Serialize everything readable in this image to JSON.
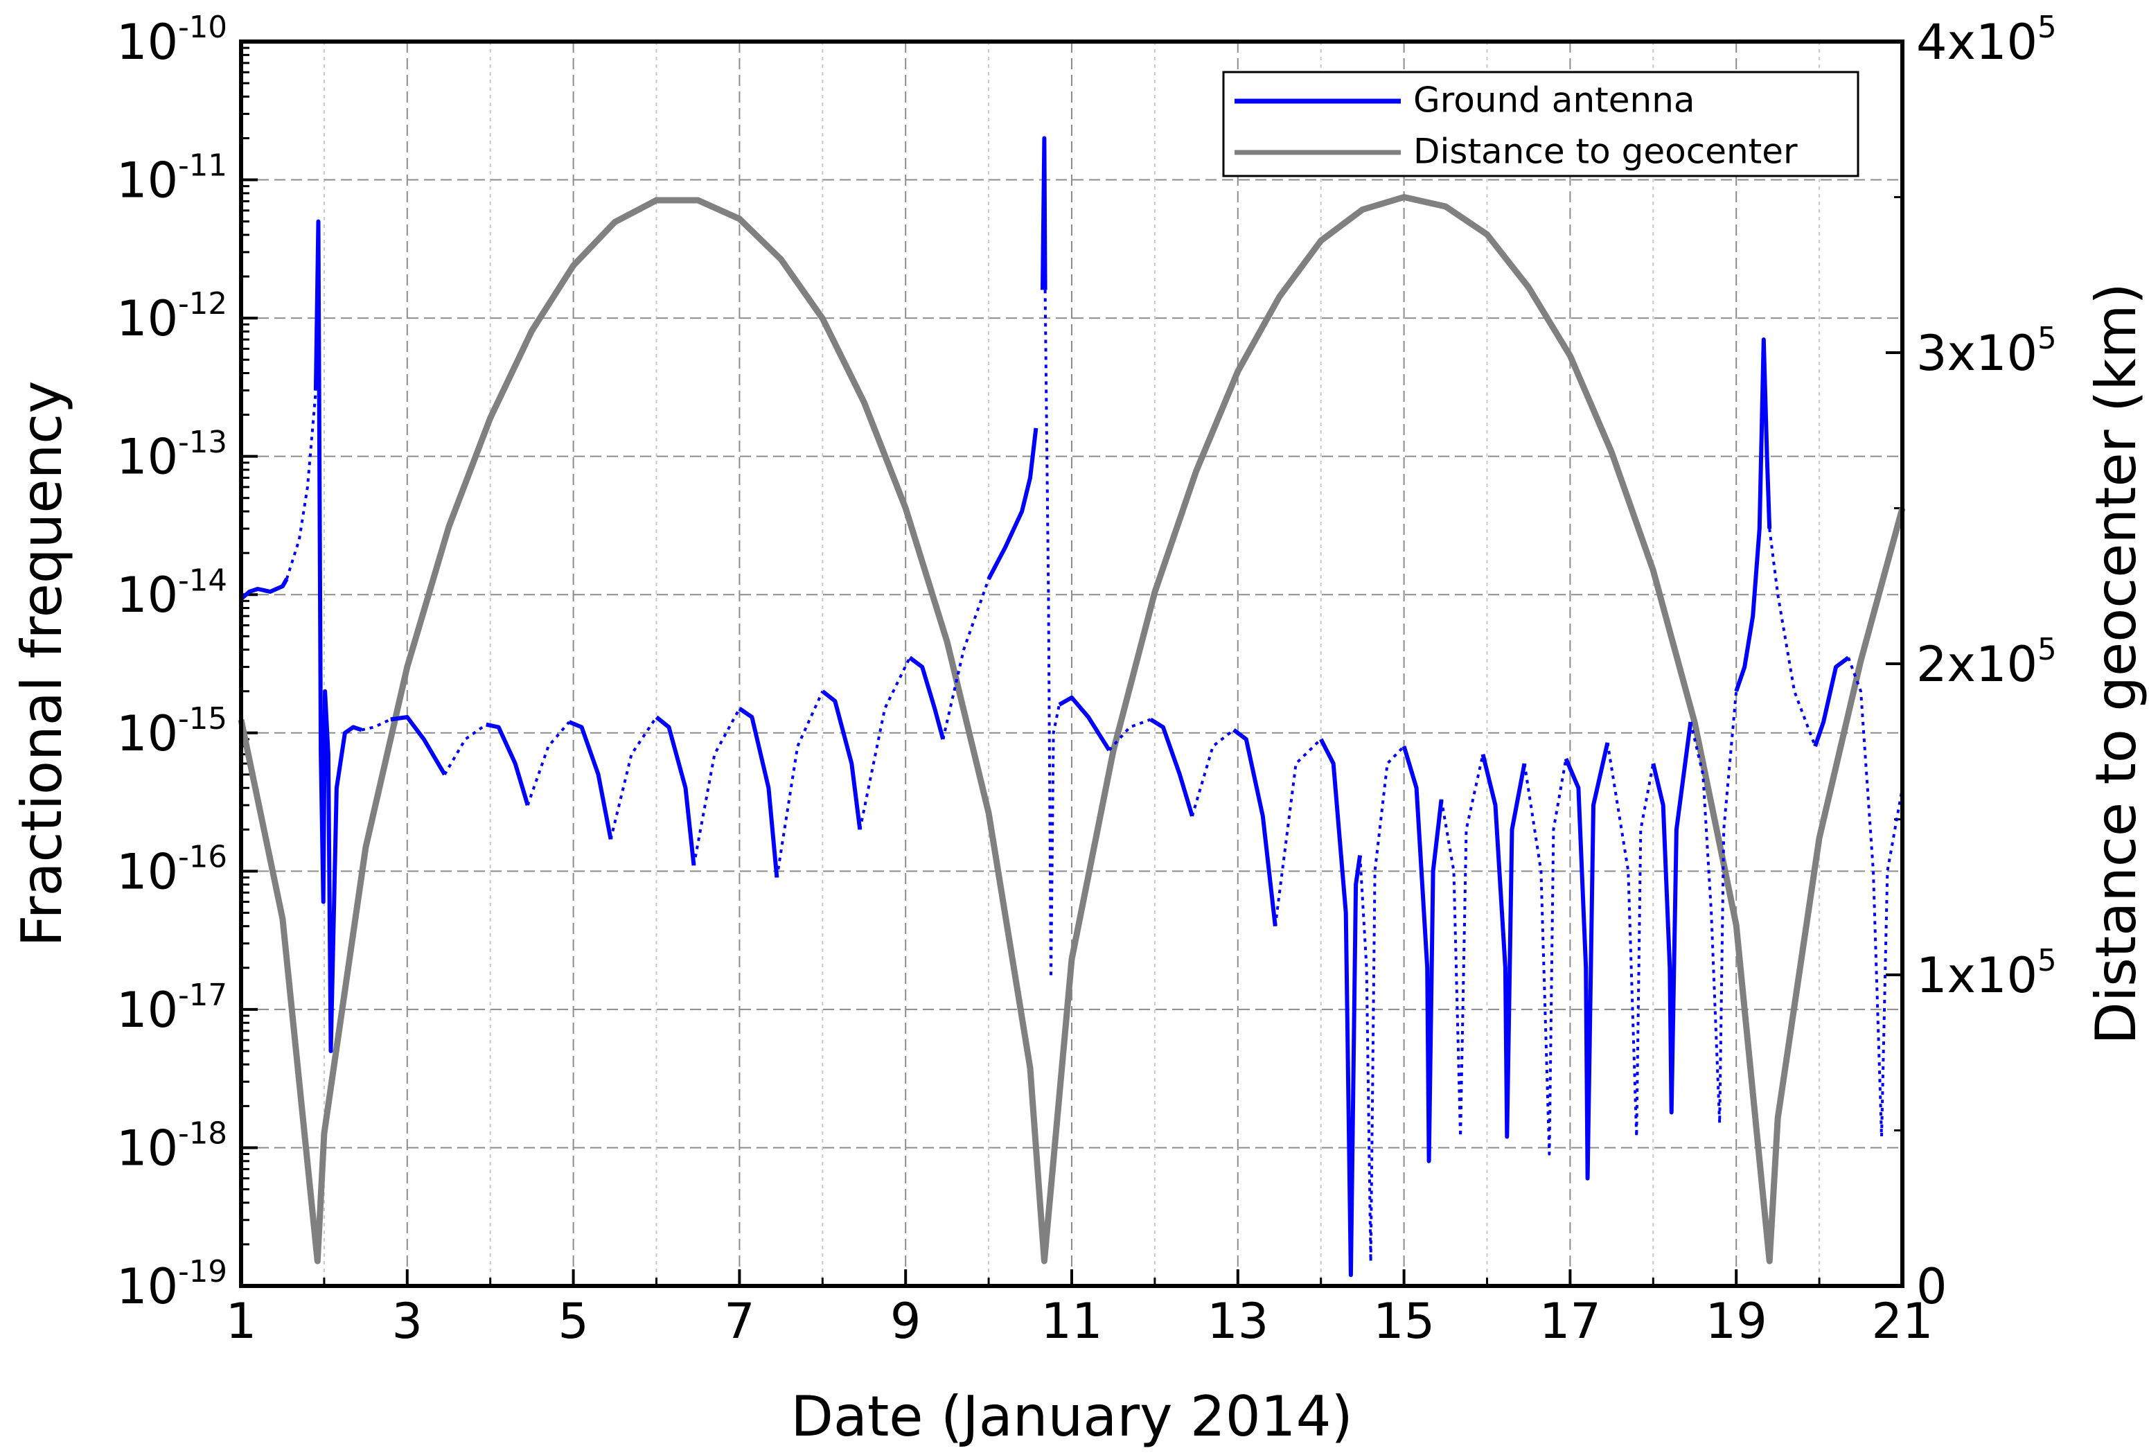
{
  "chart_data": {
    "type": "line",
    "xlabel": "Date (January 2014)",
    "ylabel": "Fractional frequency",
    "y2label": "Distance to geocenter (km)",
    "xlim": [
      1,
      21
    ],
    "xticks": [
      1,
      3,
      5,
      7,
      9,
      11,
      13,
      15,
      17,
      19,
      21
    ],
    "xminorticks": [
      2,
      4,
      6,
      8,
      10,
      12,
      14,
      16,
      18,
      20
    ],
    "ylim": [
      1e-19,
      1e-10
    ],
    "yscale": "log",
    "yticks": [
      {
        "value": 1e-19,
        "label": "10-19"
      },
      {
        "value": 1e-18,
        "label": "10-18"
      },
      {
        "value": 1e-17,
        "label": "10-17"
      },
      {
        "value": 1e-16,
        "label": "10-16"
      },
      {
        "value": 1e-15,
        "label": "10-15"
      },
      {
        "value": 1e-14,
        "label": "10-14"
      },
      {
        "value": 1e-13,
        "label": "10-13"
      },
      {
        "value": 1e-12,
        "label": "10-12"
      },
      {
        "value": 1e-11,
        "label": "10-11"
      },
      {
        "value": 1e-10,
        "label": "10-10"
      }
    ],
    "y2lim": [
      0,
      400000
    ],
    "y2ticks": [
      0,
      {
        "value": 100000,
        "label": "1x105"
      },
      {
        "value": 200000,
        "label": "2x105"
      },
      {
        "value": 300000,
        "label": "3x105"
      },
      {
        "value": 400000,
        "label": "4x105"
      }
    ],
    "grid": true,
    "legend": "upper right",
    "series": [
      {
        "name": "Distance to geocenter",
        "color": "#808080",
        "axis": "y2",
        "style": "solid",
        "x": [
          1.0,
          1.5,
          1.92,
          2.0,
          2.5,
          3.0,
          3.5,
          4.0,
          4.5,
          5.0,
          5.5,
          6.0,
          6.5,
          7.0,
          7.5,
          8.0,
          8.5,
          9.0,
          9.5,
          10.0,
          10.5,
          10.67,
          11.0,
          11.5,
          12.0,
          12.5,
          13.0,
          13.5,
          14.0,
          14.5,
          15.0,
          15.5,
          16.0,
          16.5,
          17.0,
          17.5,
          18.0,
          18.5,
          19.0,
          19.4,
          19.5,
          20.0,
          20.5,
          21.0
        ],
        "values": [
          182000,
          118000,
          8000,
          49000,
          141000,
          199000,
          244000,
          279000,
          307000,
          328000,
          342000,
          349000,
          349000,
          343000,
          330000,
          311000,
          284000,
          250000,
          207000,
          152000,
          70000,
          8000,
          105000,
          172000,
          223000,
          262000,
          294000,
          318000,
          336000,
          346000,
          350000,
          347000,
          338000,
          321000,
          299000,
          268000,
          230000,
          181000,
          116000,
          8000,
          54000,
          144000,
          201000,
          250000
        ]
      },
      {
        "name": "Ground antenna",
        "color": "#0000ff",
        "style": "solid",
        "x": [
          1.0,
          1.1,
          1.2,
          1.35,
          1.5,
          1.55,
          null,
          1.9,
          1.93,
          1.96,
          1.99,
          2.01,
          2.05,
          2.08,
          2.15,
          2.25,
          2.35,
          2.45,
          null,
          2.8,
          3.0,
          3.2,
          3.45,
          null,
          3.95,
          4.1,
          4.3,
          4.45,
          null,
          4.95,
          5.1,
          5.3,
          5.45,
          null,
          6.0,
          6.15,
          6.35,
          6.45,
          null,
          7.0,
          7.15,
          7.35,
          7.45,
          null,
          8.0,
          8.15,
          8.35,
          8.45,
          null,
          9.05,
          9.2,
          9.35,
          9.45,
          null,
          10.0,
          10.2,
          10.4,
          10.5,
          10.57,
          null,
          10.65,
          10.67,
          10.68,
          null,
          10.85,
          11.0,
          11.2,
          11.45,
          null,
          11.95,
          12.1,
          12.3,
          12.45,
          null,
          12.95,
          13.1,
          13.3,
          13.45,
          null,
          14.0,
          14.15,
          14.3,
          14.36,
          14.42,
          14.47,
          null,
          15.0,
          15.15,
          15.28,
          15.3,
          15.35,
          15.45,
          null,
          15.95,
          16.1,
          16.22,
          16.24,
          16.3,
          16.45,
          null,
          16.95,
          17.1,
          17.19,
          17.21,
          17.28,
          17.45,
          null,
          18.0,
          18.12,
          18.2,
          18.22,
          18.28,
          18.45,
          null,
          19.0,
          19.1,
          19.2,
          19.28,
          19.33,
          19.37,
          19.4,
          null,
          19.95,
          20.05,
          20.2,
          20.35
        ],
        "values": [
          9.3e-15,
          1.05e-14,
          1.1e-14,
          1.05e-14,
          1.15e-14,
          1.3e-14,
          null,
          3e-13,
          5e-12,
          7e-16,
          6e-17,
          2e-15,
          7e-16,
          5e-18,
          4e-16,
          1e-15,
          1.1e-15,
          1.05e-15,
          null,
          1.25e-15,
          1.3e-15,
          9e-16,
          5e-16,
          null,
          1.15e-15,
          1.1e-15,
          6e-16,
          3e-16,
          null,
          1.2e-15,
          1.1e-15,
          5e-16,
          1.7e-16,
          null,
          1.3e-15,
          1.1e-15,
          4e-16,
          1.1e-16,
          null,
          1.5e-15,
          1.3e-15,
          4e-16,
          9e-17,
          null,
          2e-15,
          1.7e-15,
          6e-16,
          2e-16,
          null,
          3.5e-15,
          3e-15,
          1.5e-15,
          9e-16,
          null,
          1.3e-14,
          2.2e-14,
          4e-14,
          7e-14,
          1.6e-13,
          null,
          1.6e-12,
          2e-11,
          1.6e-12,
          null,
          1.6e-15,
          1.8e-15,
          1.3e-15,
          7.5e-16,
          null,
          1.25e-15,
          1.1e-15,
          5e-16,
          2.5e-16,
          null,
          1.05e-15,
          9e-16,
          2.5e-16,
          4e-17,
          null,
          9e-16,
          6e-16,
          5e-17,
          1.2e-19,
          8e-17,
          1.3e-16,
          null,
          8e-16,
          4e-16,
          2e-17,
          8e-19,
          1e-16,
          3.3e-16,
          null,
          7e-16,
          3e-16,
          2e-17,
          1.2e-18,
          2e-16,
          6e-16,
          null,
          6.5e-16,
          4e-16,
          2e-17,
          6e-19,
          3e-16,
          8.5e-16,
          null,
          6e-16,
          3e-16,
          2e-17,
          1.8e-18,
          2e-16,
          1.2e-15,
          null,
          2e-15,
          3e-15,
          7e-15,
          3e-14,
          7e-13,
          1e-13,
          3e-14,
          null,
          8e-16,
          1.2e-15,
          3e-15,
          3.5e-15
        ]
      },
      {
        "color": "#0000ff",
        "style": "dotted",
        "x": [
          1.55,
          1.7,
          1.8,
          1.9,
          null,
          2.45,
          2.6,
          2.8,
          null,
          3.45,
          3.7,
          3.95,
          null,
          4.45,
          4.7,
          4.95,
          null,
          5.45,
          5.7,
          6.0,
          null,
          6.45,
          6.7,
          7.0,
          null,
          7.45,
          7.7,
          8.0,
          null,
          8.45,
          8.75,
          9.05,
          null,
          9.45,
          9.7,
          10.0,
          null,
          10.68,
          10.72,
          10.75,
          10.78,
          10.85,
          null,
          11.45,
          11.7,
          11.95,
          null,
          12.45,
          12.7,
          12.95,
          null,
          13.45,
          13.7,
          14.0,
          null,
          14.47,
          14.55,
          14.6,
          14.65,
          14.8,
          15.0,
          null,
          15.45,
          15.6,
          15.68,
          15.75,
          15.95,
          null,
          16.45,
          16.65,
          16.75,
          16.8,
          16.95,
          null,
          17.45,
          17.7,
          17.8,
          17.85,
          18.0,
          null,
          18.45,
          18.6,
          18.7,
          18.8,
          18.85,
          19.0,
          null,
          19.4,
          19.5,
          19.7,
          19.95,
          null,
          20.35,
          20.5,
          20.65,
          20.75,
          20.82,
          21.0
        ],
        "values": [
          1.3e-14,
          2.5e-14,
          6e-14,
          3e-13,
          null,
          1.05e-15,
          1.1e-15,
          1.25e-15,
          null,
          5e-16,
          9e-16,
          1.15e-15,
          null,
          3e-16,
          8e-16,
          1.2e-15,
          null,
          1.7e-16,
          7e-16,
          1.3e-15,
          null,
          1.1e-16,
          7e-16,
          1.5e-15,
          null,
          9e-17,
          8e-16,
          2e-15,
          null,
          2e-16,
          1.5e-15,
          3.5e-15,
          null,
          9e-16,
          4e-15,
          1.3e-14,
          null,
          1.6e-12,
          1e-14,
          1.7e-17,
          1e-15,
          1.6e-15,
          null,
          7.5e-16,
          1.1e-15,
          1.25e-15,
          null,
          2.5e-16,
          8e-16,
          1.05e-15,
          null,
          4e-17,
          6e-16,
          9e-16,
          null,
          1.3e-16,
          2e-17,
          1.5e-19,
          1e-16,
          6e-16,
          8e-16,
          null,
          3.3e-16,
          1e-16,
          1.2e-18,
          2e-16,
          7e-16,
          null,
          6e-16,
          1e-16,
          9e-19,
          2e-16,
          6.5e-16,
          null,
          8.5e-16,
          1e-16,
          1.2e-18,
          2e-16,
          6e-16,
          null,
          1.2e-15,
          5e-16,
          5e-17,
          1.5e-18,
          2e-16,
          2e-15,
          null,
          3e-14,
          1e-14,
          2e-15,
          8e-16,
          null,
          3.5e-15,
          2e-15,
          1e-16,
          1.2e-18,
          1e-16,
          4e-16
        ]
      }
    ]
  }
}
